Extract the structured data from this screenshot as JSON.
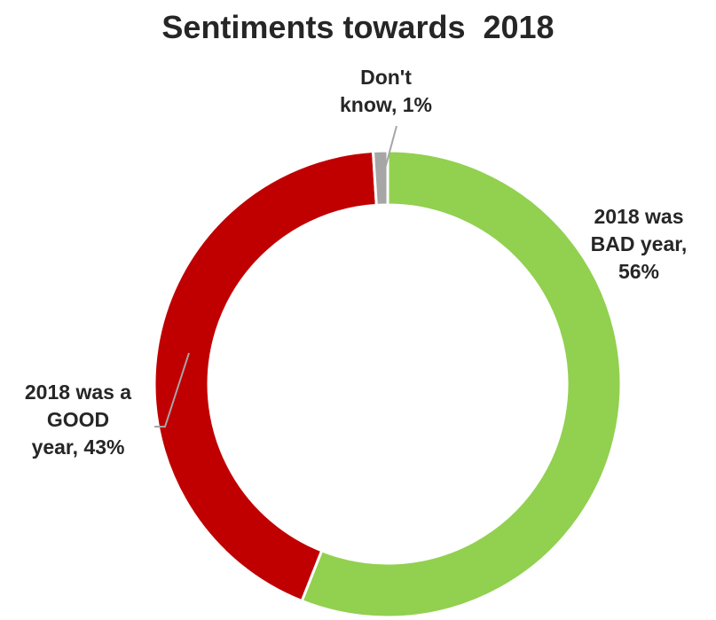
{
  "chart_data": {
    "type": "pie",
    "variant": "donut",
    "title": "Sentiments towards  2018",
    "start_angle_deg": 0,
    "slices": [
      {
        "label_lines": [
          "2018 was",
          "BAD year,",
          "56%"
        ],
        "value": 56,
        "color": "#92d050"
      },
      {
        "label_lines": [
          "2018 was a",
          "GOOD",
          "year, 43%"
        ],
        "value": 43,
        "color": "#c00000"
      },
      {
        "label_lines": [
          "Don't",
          "know, 1%"
        ],
        "value": 1,
        "color": "#a6a6a6"
      }
    ],
    "leader_line_color": "#a6a6a6",
    "legend": "none"
  }
}
